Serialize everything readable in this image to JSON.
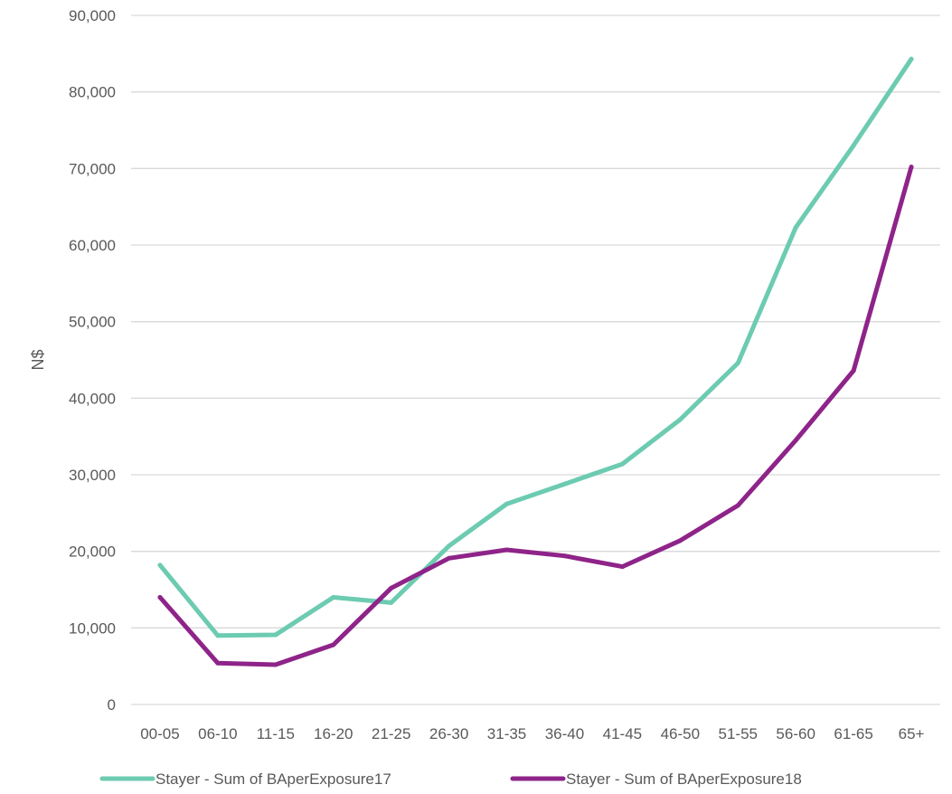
{
  "chart_data": {
    "type": "line",
    "title": "",
    "xlabel": "",
    "ylabel": "N$",
    "ylim": [
      0,
      90000
    ],
    "yticks": [
      "0",
      "10,000",
      "20,000",
      "30,000",
      "40,000",
      "50,000",
      "60,000",
      "70,000",
      "80,000",
      "90,000"
    ],
    "ytick_values": [
      0,
      10000,
      20000,
      30000,
      40000,
      50000,
      60000,
      70000,
      80000,
      90000
    ],
    "grid": true,
    "legend_position": "bottom",
    "categories": [
      "00-05",
      "06-10",
      "11-15",
      "16-20",
      "21-25",
      "26-30",
      "31-35",
      "36-40",
      "41-45",
      "46-50",
      "51-55",
      "56-60",
      "61-65",
      "65+"
    ],
    "series": [
      {
        "name": "Stayer - Sum of BAperExposure17",
        "color": "#6ccbb1",
        "values": [
          18200,
          9000,
          9100,
          14000,
          13300,
          20700,
          26200,
          28800,
          31400,
          37200,
          44600,
          62300,
          73000,
          84300
        ]
      },
      {
        "name": "Stayer - Sum of BAperExposure18",
        "color": "#8e2489",
        "values": [
          14000,
          5400,
          5200,
          7800,
          15200,
          19100,
          20200,
          19400,
          18000,
          21400,
          26000,
          34500,
          43600,
          70200
        ]
      }
    ]
  }
}
